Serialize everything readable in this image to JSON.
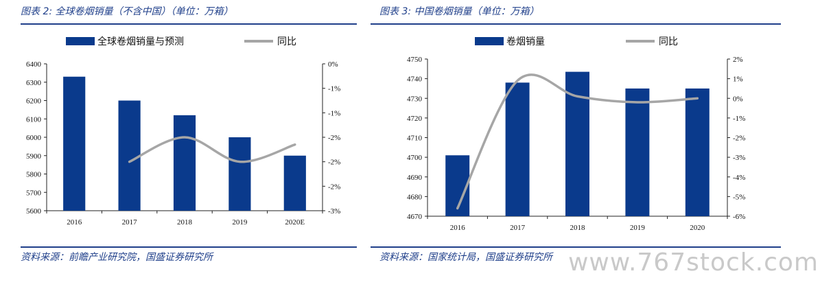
{
  "chart_data": [
    {
      "type": "bar",
      "title": "图表 2:  全球卷烟销量（不含中国）（单位：万箱）",
      "source": "资料来源：前瞻产业研究院，国盛证券研究所",
      "categories": [
        "2016",
        "2017",
        "2018",
        "2019",
        "2020E"
      ],
      "series": [
        {
          "name": "全球卷烟销量与预测",
          "type": "bar",
          "axis": "left",
          "color": "#0a3a8c",
          "values": [
            6330,
            6200,
            6120,
            6000,
            5900
          ]
        },
        {
          "name": "同比",
          "type": "line",
          "axis": "right",
          "color": "#a6a6a6",
          "values": [
            null,
            -2.0,
            -1.5,
            -2.0,
            -1.65
          ]
        }
      ],
      "ylim": [
        5600,
        6400
      ],
      "y_ticks": [
        "5600",
        "5700",
        "5800",
        "5900",
        "6000",
        "6100",
        "6200",
        "6300",
        "6400"
      ],
      "y2lim": [
        -3,
        0
      ],
      "y2_ticks": [
        "-3%",
        "-2%",
        "-2%",
        "-2%",
        "-1%",
        "-1%",
        "0%"
      ],
      "legend": "top"
    },
    {
      "type": "bar",
      "title": "图表 3:  中国卷烟销量（单位：万箱）",
      "source": "资料来源：国家统计局，国盛证券研究所",
      "categories": [
        "2016",
        "2017",
        "2018",
        "2019",
        "2020"
      ],
      "series": [
        {
          "name": "卷烟销量",
          "type": "bar",
          "axis": "left",
          "color": "#0a3a8c",
          "values": [
            4701,
            4738,
            4743.5,
            4735,
            4735
          ]
        },
        {
          "name": "同比",
          "type": "line",
          "axis": "right",
          "color": "#a6a6a6",
          "values": [
            -5.6,
            0.9,
            0.1,
            -0.2,
            0.0
          ]
        }
      ],
      "ylim": [
        4670,
        4750
      ],
      "y_ticks": [
        "4670",
        "4680",
        "4690",
        "4700",
        "4710",
        "4720",
        "4730",
        "4740",
        "4750"
      ],
      "y2lim": [
        -6,
        2
      ],
      "y2_ticks": [
        "-6%",
        "-5%",
        "-4%",
        "-3%",
        "-2%",
        "-1%",
        "0%",
        "1%",
        "2%"
      ],
      "legend": "top"
    }
  ],
  "watermark": "www.767stock.com"
}
